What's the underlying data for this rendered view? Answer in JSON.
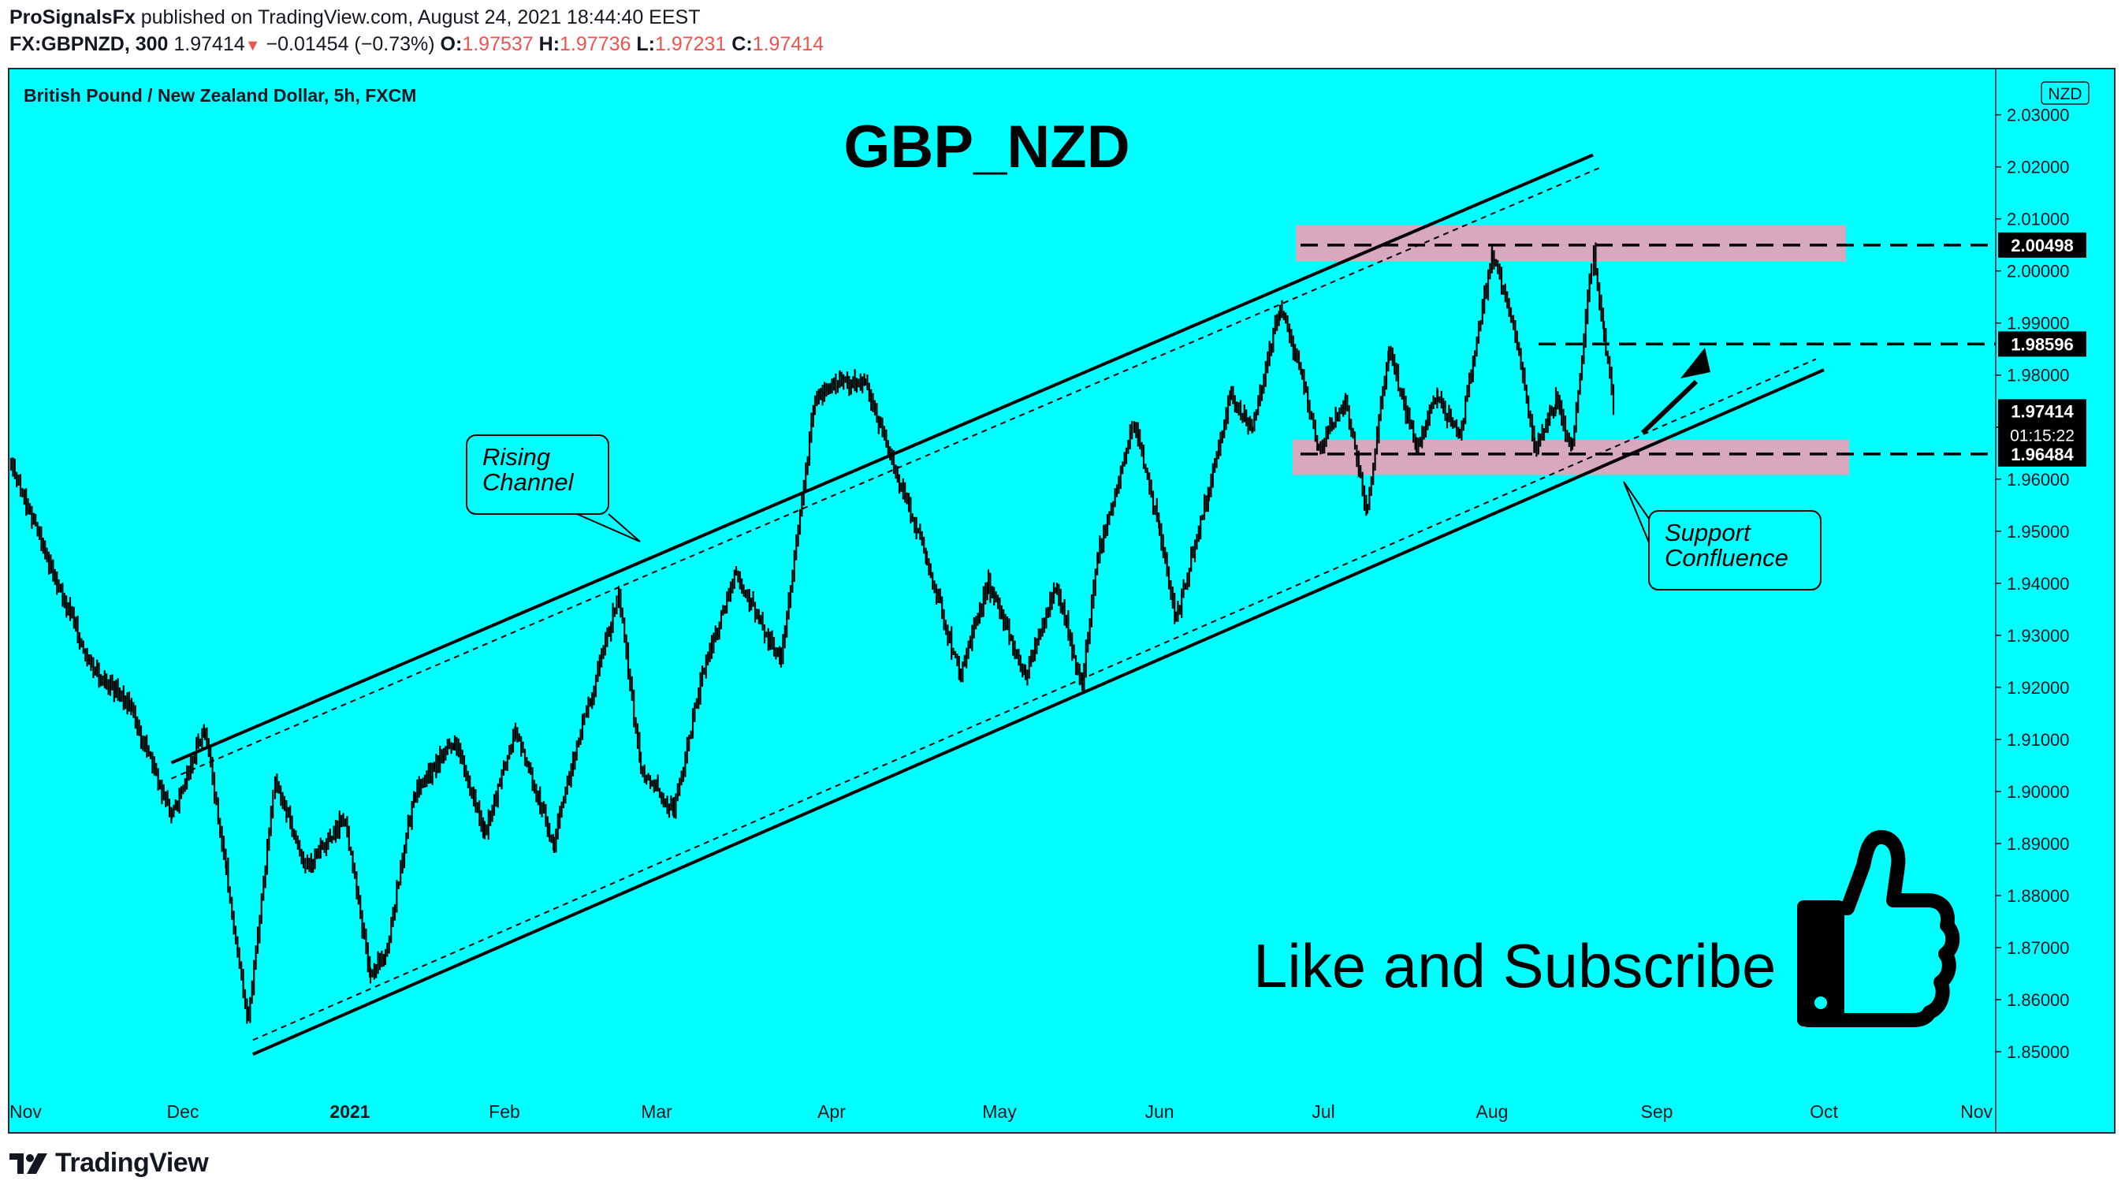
{
  "header": {
    "publisher": "ProSignalsFx",
    "published_text": "published on TradingView.com, August 24, 2021 18:44:40 EEST",
    "symbol": "FX:GBPNZD, 300",
    "last": "1.97414",
    "change": "−0.01454 (−0.73%)",
    "o_label": "O:",
    "o_value": "1.97537",
    "h_label": "H:",
    "h_value": "1.97736",
    "l_label": "L:",
    "l_value": "1.97231",
    "c_label": "C:",
    "c_value": "1.97414"
  },
  "footer": {
    "brand": "TradingView"
  },
  "colors": {
    "background": "#00ffff",
    "zone": "#d7a8be",
    "price_label": "#000000",
    "text": "#131722",
    "down": "#ef5350"
  },
  "chart_data": {
    "type": "candlestick",
    "title": "GBP_NZD",
    "instrument": "British Pound / New Zealand Dollar, 5h, FXCM",
    "currency_badge": "NZD",
    "ylim": [
      1.845,
      2.0343
    ],
    "y_ticks": [
      "1.85000",
      "1.86000",
      "1.87000",
      "1.88000",
      "1.89000",
      "1.90000",
      "1.91000",
      "1.92000",
      "1.93000",
      "1.94000",
      "1.95000",
      "1.96000",
      "1.97000",
      "1.98000",
      "1.99000",
      "2.00000",
      "2.01000",
      "2.02000",
      "2.03000"
    ],
    "x_labels": [
      "Nov",
      "Dec",
      "2021",
      "Feb",
      "Mar",
      "Apr",
      "May",
      "Jun",
      "Jul",
      "Aug",
      "Sep",
      "Oct",
      "Nov"
    ],
    "price_path": [
      {
        "x": "2020-11-01",
        "y": 1.963
      },
      {
        "x": "2020-11-08",
        "y": 1.943
      },
      {
        "x": "2020-11-15",
        "y": 1.924
      },
      {
        "x": "2020-11-22",
        "y": 1.916
      },
      {
        "x": "2020-11-29",
        "y": 1.895
      },
      {
        "x": "2020-12-05",
        "y": 1.912
      },
      {
        "x": "2020-12-09",
        "y": 1.885
      },
      {
        "x": "2020-12-13",
        "y": 1.855
      },
      {
        "x": "2020-12-18",
        "y": 1.902
      },
      {
        "x": "2020-12-24",
        "y": 1.885
      },
      {
        "x": "2020-12-31",
        "y": 1.895
      },
      {
        "x": "2021-01-05",
        "y": 1.865
      },
      {
        "x": "2021-01-08",
        "y": 1.868
      },
      {
        "x": "2021-01-14",
        "y": 1.9
      },
      {
        "x": "2021-01-22",
        "y": 1.91
      },
      {
        "x": "2021-01-28",
        "y": 1.892
      },
      {
        "x": "2021-02-03",
        "y": 1.912
      },
      {
        "x": "2021-02-10",
        "y": 1.89
      },
      {
        "x": "2021-02-16",
        "y": 1.915
      },
      {
        "x": "2021-02-22",
        "y": 1.938
      },
      {
        "x": "2021-02-26",
        "y": 1.905
      },
      {
        "x": "2021-03-04",
        "y": 1.896
      },
      {
        "x": "2021-03-09",
        "y": 1.922
      },
      {
        "x": "2021-03-15",
        "y": 1.942
      },
      {
        "x": "2021-03-23",
        "y": 1.925
      },
      {
        "x": "2021-03-29",
        "y": 1.975
      },
      {
        "x": "2021-04-02",
        "y": 1.979
      },
      {
        "x": "2021-04-07",
        "y": 1.978
      },
      {
        "x": "2021-04-13",
        "y": 1.96
      },
      {
        "x": "2021-04-18",
        "y": 1.945
      },
      {
        "x": "2021-04-24",
        "y": 1.922
      },
      {
        "x": "2021-04-29",
        "y": 1.94
      },
      {
        "x": "2021-05-06",
        "y": 1.922
      },
      {
        "x": "2021-05-12",
        "y": 1.94
      },
      {
        "x": "2021-05-17",
        "y": 1.92
      },
      {
        "x": "2021-05-20",
        "y": 1.945
      },
      {
        "x": "2021-05-27",
        "y": 1.971
      },
      {
        "x": "2021-06-01",
        "y": 1.95
      },
      {
        "x": "2021-06-04",
        "y": 1.933
      },
      {
        "x": "2021-06-10",
        "y": 1.958
      },
      {
        "x": "2021-06-14",
        "y": 1.976
      },
      {
        "x": "2021-06-18",
        "y": 1.97
      },
      {
        "x": "2021-06-23",
        "y": 1.993
      },
      {
        "x": "2021-06-27",
        "y": 1.98
      },
      {
        "x": "2021-06-30",
        "y": 1.965
      },
      {
        "x": "2021-07-05",
        "y": 1.975
      },
      {
        "x": "2021-07-09",
        "y": 1.954
      },
      {
        "x": "2021-07-13",
        "y": 1.985
      },
      {
        "x": "2021-07-18",
        "y": 1.966
      },
      {
        "x": "2021-07-22",
        "y": 1.976
      },
      {
        "x": "2021-07-26",
        "y": 1.968
      },
      {
        "x": "2021-08-01",
        "y": 2.003
      },
      {
        "x": "2021-08-05",
        "y": 1.99
      },
      {
        "x": "2021-08-09",
        "y": 1.966
      },
      {
        "x": "2021-08-13",
        "y": 1.975
      },
      {
        "x": "2021-08-16",
        "y": 1.965
      },
      {
        "x": "2021-08-20",
        "y": 2.004
      },
      {
        "x": "2021-08-22",
        "y": 1.988
      },
      {
        "x": "2021-08-24",
        "y": 1.974
      }
    ],
    "last_price": "1.97414",
    "countdown": "01:15:22",
    "levels": [
      {
        "label": "2.00498",
        "value": 2.00498
      },
      {
        "label": "1.98596",
        "value": 1.98596
      },
      {
        "label": "1.96484",
        "value": 1.96484
      }
    ],
    "zones": [
      {
        "name": "resistance",
        "from": 2.0018,
        "to": 2.0088
      },
      {
        "name": "support",
        "from": 1.9608,
        "to": 1.9676
      }
    ],
    "channel": {
      "upper": [
        {
          "x": "2020-11-29",
          "y": 1.9055
        },
        {
          "x": "2021-08-20",
          "y": 2.0223
        }
      ],
      "lower": [
        {
          "x": "2020-12-14",
          "y": 1.8495
        },
        {
          "x": "2021-10-01",
          "y": 1.981
        }
      ]
    },
    "annotations": [
      {
        "name": "rising-channel",
        "lines": [
          "Rising",
          "Channel"
        ]
      },
      {
        "name": "support-confluence",
        "lines": [
          "Support",
          "Confluence"
        ]
      }
    ],
    "cta_text": "Like and Subscribe",
    "grid": false
  }
}
